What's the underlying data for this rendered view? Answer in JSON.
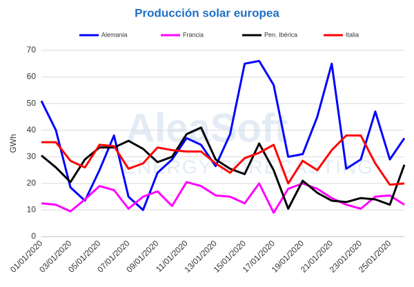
{
  "chart_data": {
    "type": "line",
    "title": "Producción solar europea",
    "y_label": "GWh",
    "watermark": [
      "AleaSoft",
      "ENERGY FORECASTING"
    ],
    "categories": [
      "01/01/2020",
      null,
      "03/01/2020",
      null,
      "05/01/2020",
      null,
      "07/01/2020",
      null,
      "09/01/2020",
      null,
      "11/01/2020",
      null,
      "13/01/2020",
      null,
      "15/01/2020",
      null,
      "17/01/2020",
      null,
      "19/01/2020",
      null,
      "21/01/2020",
      null,
      "23/01/2020",
      null,
      "25/01/2020",
      null
    ],
    "series": [
      {
        "name": "Alemania",
        "color": "#0000ff",
        "values": [
          51,
          40,
          18.5,
          13.5,
          25,
          38,
          15,
          10,
          24,
          29,
          37,
          34.5,
          26.5,
          38.5,
          65,
          66,
          57,
          30,
          31,
          45,
          65,
          25.5,
          29,
          47,
          29,
          37
        ]
      },
      {
        "name": "Francia",
        "color": "#ff00ff",
        "values": [
          12.5,
          12,
          9.5,
          14,
          19,
          17.5,
          10.5,
          15,
          17,
          11.5,
          20.5,
          19,
          15.5,
          15,
          12.5,
          20,
          9,
          18,
          20,
          18,
          14.5,
          12,
          10.5,
          15,
          15.5,
          12
        ]
      },
      {
        "name": "Pen. Ibérica",
        "color": "#000000",
        "values": [
          30.5,
          26,
          20.5,
          29,
          33.5,
          33.5,
          36,
          33,
          28,
          30,
          38.5,
          41,
          29,
          25.5,
          23.5,
          35,
          25,
          10.5,
          21,
          16.5,
          13.5,
          13,
          14.5,
          14,
          12,
          27
        ]
      },
      {
        "name": "Italia",
        "color": "#ff0000",
        "values": [
          35.5,
          35.5,
          28.5,
          26,
          34.5,
          34,
          25.5,
          27.5,
          33.5,
          32.5,
          32,
          32,
          27.5,
          24,
          29.5,
          31.5,
          34.5,
          20,
          28.5,
          25,
          32.5,
          38,
          38,
          27.5,
          19.5,
          20
        ]
      }
    ],
    "ylim": [
      0,
      70
    ],
    "yticks": [
      0,
      10,
      20,
      30,
      40,
      50,
      60,
      70
    ],
    "grid": true,
    "legend": "top"
  }
}
